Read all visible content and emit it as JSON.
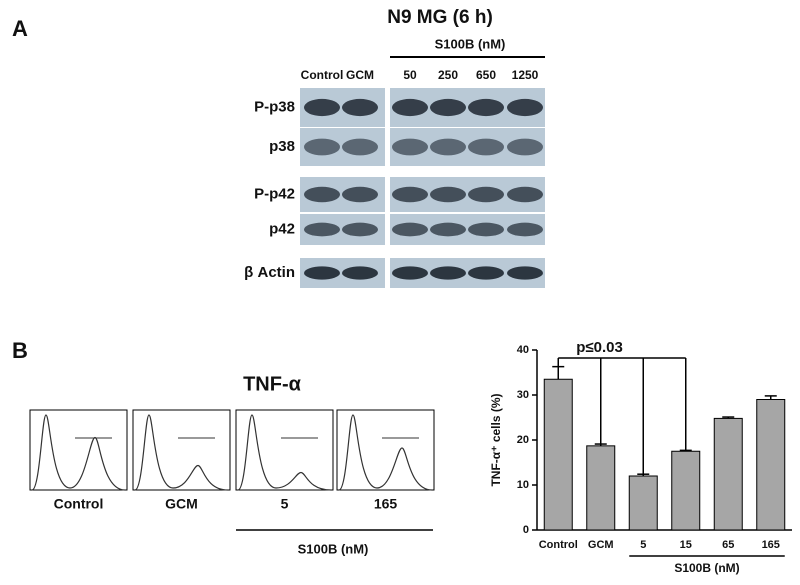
{
  "panel_a": {
    "label": "A",
    "title": "N9 MG (6 h)",
    "treatment": "S100B (nM)",
    "lanes": [
      "Control",
      "GCM",
      "50",
      "250",
      "650",
      "1250"
    ],
    "blots": [
      "P-p38",
      "p38",
      "P-p42",
      "p42",
      "β Actin"
    ]
  },
  "panel_b": {
    "label": "B",
    "flow_title": "TNF-α",
    "histograms": [
      "Control",
      "GCM",
      "5",
      "165"
    ],
    "flow_treatment": "S100B (nM)"
  },
  "chart_data": {
    "type": "bar",
    "categories": [
      "Control",
      "GCM",
      "5",
      "15",
      "65",
      "165"
    ],
    "values": [
      33.5,
      18.7,
      12,
      17.5,
      24.8,
      29
    ],
    "errors": [
      2.8,
      0.4,
      0.4,
      0.2,
      0.3,
      0.8
    ],
    "color": "#a6a6a6",
    "ylim": [
      0,
      40
    ],
    "yticks": [
      0,
      10,
      20,
      30,
      40
    ],
    "y_label": "TNF-α⁺ cells (%)",
    "annotation": "p≤0.03",
    "group_label": "S100B (nM)"
  }
}
